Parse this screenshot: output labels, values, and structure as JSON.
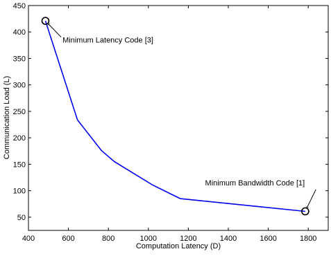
{
  "chart_data": {
    "type": "line",
    "title": "",
    "xlabel": "Computation Latency (D)",
    "ylabel": "Communication Load (L)",
    "xlim": [
      400,
      1900
    ],
    "ylim": [
      25,
      450
    ],
    "xticks": [
      400,
      600,
      800,
      1000,
      1200,
      1400,
      1600,
      1800
    ],
    "yticks": [
      50,
      100,
      150,
      200,
      250,
      300,
      350,
      400,
      450
    ],
    "grid": false,
    "series": [
      {
        "color": "#0000ee",
        "points": [
          {
            "x": 485,
            "y": 421
          },
          {
            "x": 645,
            "y": 234
          },
          {
            "x": 765,
            "y": 176
          },
          {
            "x": 830,
            "y": 155
          },
          {
            "x": 1020,
            "y": 111
          },
          {
            "x": 1160,
            "y": 85
          },
          {
            "x": 1785,
            "y": 61
          }
        ]
      }
    ],
    "markers": [
      {
        "x": 485,
        "y": 421
      },
      {
        "x": 1785,
        "y": 61
      }
    ],
    "annotations": [
      {
        "text": "Minimum Latency Code [3]",
        "target": {
          "x": 485,
          "y": 421
        },
        "text_at": {
          "x": 640,
          "y": 385
        }
      },
      {
        "text": "Minimum Bandwidth Code [1]",
        "target": {
          "x": 1785,
          "y": 61
        },
        "text_at": {
          "x": 1880,
          "y": 105
        }
      }
    ]
  }
}
